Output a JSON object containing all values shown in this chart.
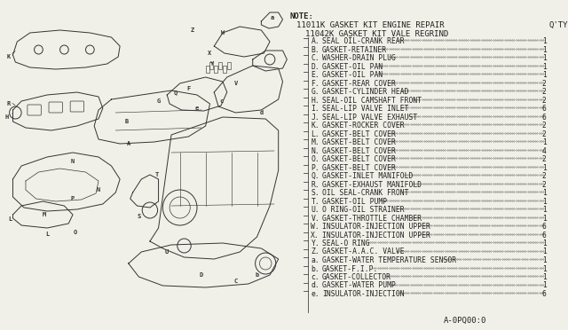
{
  "bg_color": "#f0f0e8",
  "title_note": "NOTE:",
  "title_line1": "11011K GASKET KIT ENGINE REPAIR",
  "title_qty": "Q'TY",
  "title_line2": "11042K GASKET KIT VALE REGRIND",
  "parts": [
    [
      "A",
      "SEAL OIL-CRANK REAR",
      "1"
    ],
    [
      "B",
      "GASKET-RETAINER",
      "1"
    ],
    [
      "C",
      "WASHER-DRAIN PLUG",
      "1"
    ],
    [
      "D",
      "GASKET-OIL PAN",
      "1"
    ],
    [
      "E",
      "GASKET-OIL PAN",
      "1"
    ],
    [
      "F",
      "GASKET-REAR COVER",
      "2"
    ],
    [
      "G",
      "GASKET-CYLINDER HEAD",
      "2"
    ],
    [
      "H",
      "SEAL-OIL CAMSHAFT FRONT",
      "2"
    ],
    [
      "I",
      "SEAL-LIP VALVE INLET",
      "6"
    ],
    [
      "J",
      "SEAL-LIP VALVE EXHAUST",
      "6"
    ],
    [
      "K",
      "GASKET-ROCKER COVER",
      "2"
    ],
    [
      "L",
      "GASKET-BELT COVER",
      "2"
    ],
    [
      "M",
      "GASKET-BELT COVER",
      "1"
    ],
    [
      "N",
      "GASKET-BELT COVER",
      "4"
    ],
    [
      "O",
      "GASKET-BELT COVER",
      "2"
    ],
    [
      "P",
      "GASKET-BELT COVER",
      "1"
    ],
    [
      "Q",
      "GASKET-INLET MANIFOLD",
      "2"
    ],
    [
      "R",
      "GASKET-EXHAUST MANIFOLD",
      "2"
    ],
    [
      "S",
      "OIL SEAL-CRANK FRONT",
      "1"
    ],
    [
      "T",
      "GASKET-OIL PUMP",
      "1"
    ],
    [
      "U",
      "O RING-OIL STRAINER",
      "1"
    ],
    [
      "V",
      "GASKET-THROTTLE CHAMBER",
      "1"
    ],
    [
      "W",
      "INSULATOR-INJECTION UPPER",
      "6"
    ],
    [
      "X",
      "INSULATOR-INJECTION UPPER",
      "6"
    ],
    [
      "Y",
      "SEAL-O RING",
      "1"
    ],
    [
      "Z",
      "GASKET-A.A.C. VALVE",
      "1"
    ],
    [
      "a",
      "GASKET-WATER TEMPERATURE SENSOR",
      "1"
    ],
    [
      "b",
      "GASKET-F.I.P.",
      "1"
    ],
    [
      "c",
      "GASKET-COLLECTOR",
      "1"
    ],
    [
      "d",
      "GASKET-WATER PUMP",
      "1"
    ],
    [
      "e",
      "INSULATOR-INJECTION",
      "6"
    ]
  ],
  "footer": "A-0PQ00:0",
  "font_size_title": 6.5,
  "font_size_parts": 5.8,
  "text_color": "#222222",
  "line_color": "#444444"
}
